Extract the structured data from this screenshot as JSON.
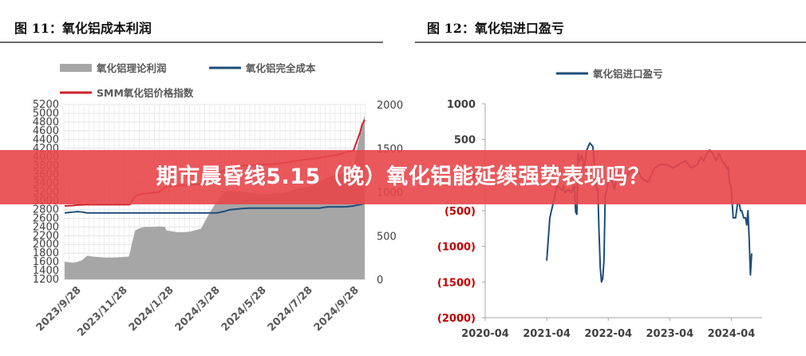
{
  "figures": {
    "left_title": "图 11：氧化铝成本利润",
    "right_title": "图 12：氧化铝进口盈亏"
  },
  "banner": {
    "text": "期市晨昏线5.15（晚）氧化铝能延续强势表现吗？"
  },
  "colors": {
    "profit_area": "#a6a6a6",
    "cost_line": "#1f4e79",
    "price_line": "#d0202a",
    "import_line": "#1f4e79",
    "negative_tick": "#c00000",
    "banner": "#e8464a"
  },
  "chart_data": [
    {
      "type": "line",
      "title": "",
      "legend": [
        "氧化铝理论利润",
        "氧化铝完全成本",
        "SMM氧化铝价格指数"
      ],
      "legend_placement": "top-left",
      "grid": true,
      "x_ticks": [
        "2023/9/28",
        "2023/11/28",
        "2024/1/28",
        "2024/3/28",
        "2024/5/28",
        "2024/7/28",
        "2024/9/28"
      ],
      "y_left": {
        "ticks": [
          1200,
          1400,
          1600,
          1800,
          2000,
          2200,
          2400,
          2600,
          2800,
          3000,
          3200,
          3400,
          3600,
          3800,
          4000,
          4200,
          4400,
          4600,
          4800,
          5000,
          5200
        ],
        "ylim": [
          1200,
          5200
        ]
      },
      "y_right": {
        "ticks": [
          0,
          500,
          1000,
          1500,
          2000
        ],
        "ylim": [
          0,
          2000
        ]
      },
      "x": [
        0,
        10,
        16,
        22,
        28,
        35,
        50,
        60,
        70,
        80,
        82,
        84,
        88,
        95,
        100,
        110,
        118,
        125,
        127,
        140,
        150,
        158,
        162,
        170,
        180,
        190,
        200,
        205,
        210,
        215,
        222,
        230,
        240,
        250,
        260,
        270,
        280,
        285,
        290,
        298,
        304,
        310,
        318,
        324,
        330,
        340,
        350,
        360,
        365,
        368,
        371,
        374
      ],
      "series": [
        {
          "name": "氧化铝理论利润",
          "axis": "right",
          "type": "area",
          "values": [
            200,
            190,
            200,
            220,
            270,
            260,
            250,
            250,
            255,
            260,
            330,
            420,
            560,
            590,
            600,
            600,
            605,
            600,
            560,
            540,
            540,
            550,
            560,
            580,
            750,
            900,
            1000,
            1020,
            1000,
            1010,
            1000,
            990,
            980,
            975,
            980,
            990,
            1000,
            1020,
            1040,
            1050,
            1060,
            1080,
            1120,
            1150,
            1180,
            1200,
            1220,
            1260,
            1520,
            1650,
            1780,
            1880
          ]
        },
        {
          "name": "氧化铝完全成本",
          "axis": "left",
          "values": [
            2720,
            2740,
            2750,
            2740,
            2720,
            2720,
            2720,
            2720,
            2720,
            2720,
            2720,
            2720,
            2720,
            2720,
            2720,
            2720,
            2720,
            2720,
            2720,
            2720,
            2720,
            2720,
            2720,
            2720,
            2720,
            2720,
            2760,
            2790,
            2800,
            2810,
            2820,
            2830,
            2830,
            2830,
            2830,
            2830,
            2830,
            2830,
            2830,
            2830,
            2830,
            2830,
            2830,
            2850,
            2860,
            2860,
            2860,
            2880,
            2900,
            2910,
            2920,
            2950
          ]
        },
        {
          "name": "SMM氧化铝价格指数",
          "axis": "left",
          "values": [
            2880,
            2890,
            2900,
            2905,
            2910,
            2910,
            2910,
            2910,
            2910,
            2910,
            2920,
            3000,
            3100,
            3150,
            3160,
            3180,
            3200,
            3300,
            3330,
            3340,
            3350,
            3360,
            3370,
            3380,
            3490,
            3600,
            3700,
            3720,
            3760,
            3780,
            3800,
            3810,
            3820,
            3830,
            3840,
            3860,
            3880,
            3900,
            3920,
            3940,
            3950,
            3960,
            3980,
            4000,
            4020,
            4050,
            4100,
            4150,
            4400,
            4550,
            4750,
            4850
          ]
        }
      ]
    },
    {
      "type": "line",
      "title": "",
      "legend": [
        "氧化铝进口盈亏"
      ],
      "legend_placement": "top-center",
      "grid": false,
      "x_ticks": [
        "2020-04",
        "2021-04",
        "2022-04",
        "2023-04",
        "2024-04"
      ],
      "xlim": [
        2020.25,
        2024.75
      ],
      "y_ticks": [
        "1000",
        "500",
        "0",
        "(500)",
        "(1000)",
        "(1500)",
        "(2000)"
      ],
      "ylim": [
        -2000,
        1000
      ],
      "series": [
        {
          "name": "氧化铝进口盈亏",
          "x": [
            2021.25,
            2021.3,
            2021.38,
            2021.42,
            2021.46,
            2021.5,
            2021.52,
            2021.55,
            2021.6,
            2021.65,
            2021.7,
            2021.72,
            2021.74,
            2021.76,
            2021.78,
            2021.82,
            2021.86,
            2021.9,
            2021.95,
            2022.0,
            2022.04,
            2022.06,
            2022.08,
            2022.1,
            2022.12,
            2022.14,
            2022.16,
            2022.18,
            2022.2,
            2022.25,
            2022.3,
            2022.35,
            2022.4,
            2022.45,
            2022.5,
            2022.6,
            2022.7,
            2022.8,
            2022.9,
            2023.0,
            2023.1,
            2023.2,
            2023.3,
            2023.4,
            2023.5,
            2023.6,
            2023.7,
            2023.75,
            2023.8,
            2023.85,
            2023.9,
            2023.95,
            2024.0,
            2024.05,
            2024.1,
            2024.15,
            2024.18,
            2024.2,
            2024.22,
            2024.25,
            2024.28,
            2024.32,
            2024.35,
            2024.38,
            2024.4,
            2024.42,
            2024.45,
            2024.48,
            2024.5,
            2024.52,
            2024.54,
            2024.56,
            2024.58
          ],
          "values": [
            -1200,
            -600,
            -300,
            -150,
            -180,
            -220,
            -150,
            -250,
            -200,
            -250,
            -150,
            -520,
            -550,
            300,
            200,
            280,
            100,
            350,
            450,
            400,
            0,
            -200,
            -200,
            -800,
            -1300,
            -1500,
            -1450,
            -1200,
            -300,
            -100,
            -50,
            -200,
            50,
            -100,
            -100,
            50,
            100,
            -50,
            -100,
            100,
            150,
            150,
            100,
            150,
            200,
            100,
            150,
            250,
            200,
            300,
            350,
            300,
            200,
            300,
            200,
            150,
            80,
            120,
            -100,
            -200,
            -600,
            -600,
            -400,
            -400,
            -500,
            -500,
            -600,
            -600,
            -700,
            -500,
            -900,
            -1400,
            -1100
          ]
        }
      ]
    }
  ]
}
